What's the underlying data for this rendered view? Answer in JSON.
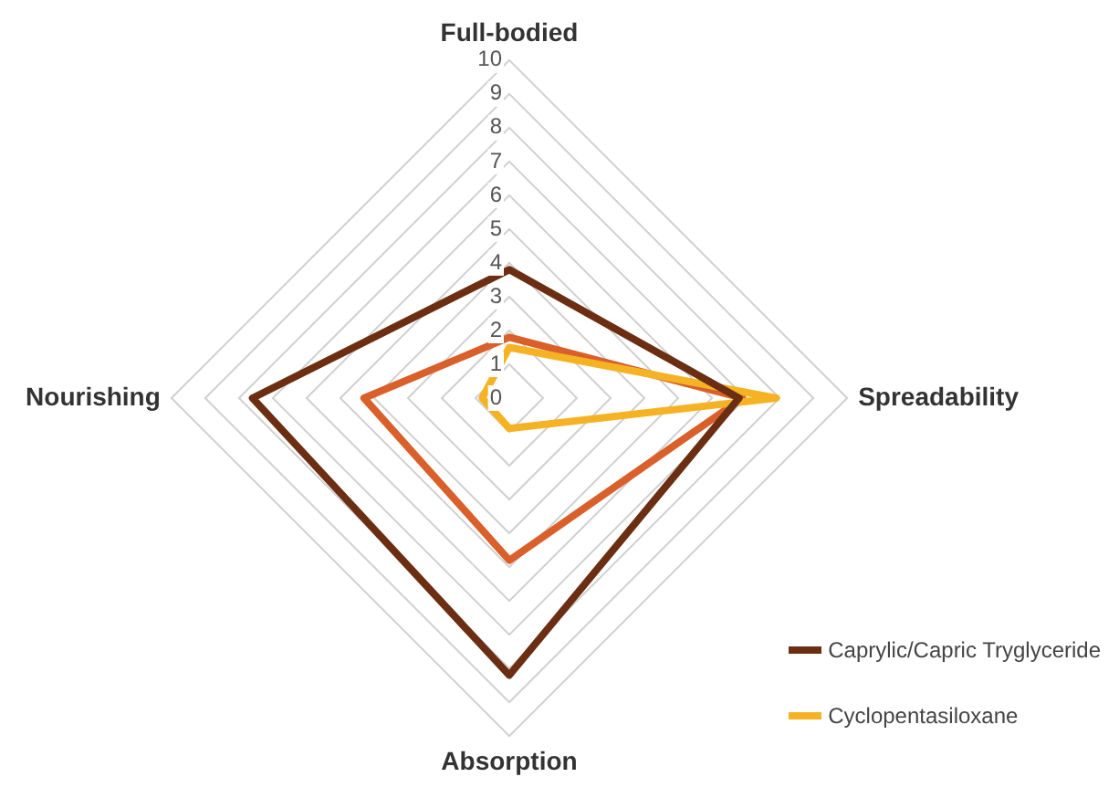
{
  "chart_data": {
    "type": "radar",
    "categories": [
      "Full-bodied",
      "Spreadability",
      "Absorption",
      "Nourishing"
    ],
    "series": [
      {
        "name": "Caprylic/Capric Tryglyceride",
        "color": "#6b2e12",
        "values": [
          3.8,
          6.8,
          8.2,
          7.6
        ]
      },
      {
        "name": "Cyclopentasiloxane",
        "color": "#f5b324",
        "values": [
          1.5,
          7.9,
          0.9,
          0.8
        ]
      },
      {
        "color": "#d9602a",
        "values": [
          1.8,
          6.9,
          4.8,
          4.3
        ]
      }
    ],
    "ylim": [
      0,
      10
    ],
    "yticks": [
      0,
      1,
      2,
      3,
      4,
      5,
      6,
      7,
      8,
      9,
      10
    ],
    "grid": true,
    "legend": "bottom right",
    "marker": "none",
    "line_style": "solid"
  }
}
